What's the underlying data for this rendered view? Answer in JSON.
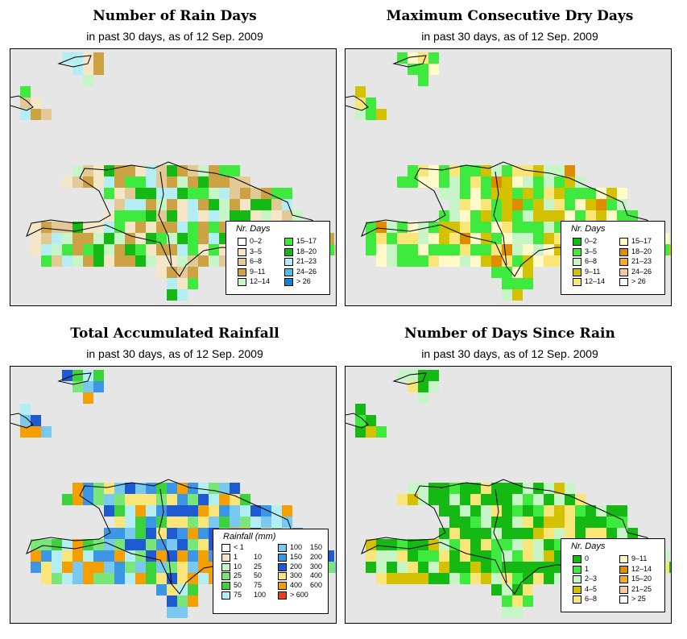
{
  "colors": {
    "ocean": "#e6e6e6",
    "outline": "#000000"
  },
  "panels": [
    {
      "title": "Number of Rain Days",
      "subtitle": "in past 30 days, as of  12 Sep. 2009",
      "legend": {
        "title": "Nr. Days",
        "items": [
          {
            "label": "0–2",
            "color": "#ffffff"
          },
          {
            "label": "3–5",
            "color": "#f5e6c8"
          },
          {
            "label": "6–8",
            "color": "#e2c995"
          },
          {
            "label": "9–11",
            "color": "#cda244"
          },
          {
            "label": "12–14",
            "color": "#c8f5c8"
          },
          {
            "label": "15–17",
            "color": "#3dea3d"
          },
          {
            "label": "18–20",
            "color": "#14b914"
          },
          {
            "label": "21–23",
            "color": "#b3eef5"
          },
          {
            "label": "24–26",
            "color": "#4fbde8"
          },
          {
            "label": "> 26",
            "color": "#1484d2"
          }
        ]
      }
    },
    {
      "title": "Maximum Consecutive Dry Days",
      "subtitle": "in past 30 days, as of  12 Sep. 2009",
      "legend": {
        "title": "Nr. Days",
        "items": [
          {
            "label": "0–2",
            "color": "#14b914"
          },
          {
            "label": "3–5",
            "color": "#3dea3d"
          },
          {
            "label": "6–8",
            "color": "#c8f5c8"
          },
          {
            "label": "9–11",
            "color": "#d4c200"
          },
          {
            "label": "12–14",
            "color": "#fae678"
          },
          {
            "label": "15–17",
            "color": "#fffac8"
          },
          {
            "label": "18–20",
            "color": "#e08c00"
          },
          {
            "label": "21–23",
            "color": "#f5aa2d"
          },
          {
            "label": "24–26",
            "color": "#fac8a0"
          },
          {
            "label": "> 26",
            "color": "#ffffff"
          }
        ]
      }
    },
    {
      "title": "Total Accumulated Rainfall",
      "subtitle": "in past 30 days, as of  12 Sep. 2009",
      "legend": {
        "title": "Rainfall (mm)",
        "items": [
          {
            "lo": "< 1",
            "hi": "",
            "color": "#ffffff"
          },
          {
            "lo": "1",
            "hi": "10",
            "color": "#f5e6c8"
          },
          {
            "lo": "10",
            "hi": "25",
            "color": "#c8f5c8"
          },
          {
            "lo": "25",
            "hi": "50",
            "color": "#78e678"
          },
          {
            "lo": "50",
            "hi": "75",
            "color": "#3cd23c"
          },
          {
            "lo": "75",
            "hi": "100",
            "color": "#b3eef5"
          },
          {
            "lo": "100",
            "hi": "150",
            "color": "#78c8f0"
          },
          {
            "lo": "150",
            "hi": "200",
            "color": "#3c96e6"
          },
          {
            "lo": "200",
            "hi": "300",
            "color": "#1e5ad2"
          },
          {
            "lo": "300",
            "hi": "400",
            "color": "#fae678"
          },
          {
            "lo": "400",
            "hi": "600",
            "color": "#f5a000"
          },
          {
            "lo": "> 600",
            "hi": "",
            "color": "#f03c14"
          }
        ]
      }
    },
    {
      "title": "Number of Days Since Rain",
      "subtitle": "in past 30 days, as of  12 Sep. 2009",
      "legend": {
        "title": "Nr. Days",
        "items": [
          {
            "label": "0",
            "color": "#14b914"
          },
          {
            "label": "1",
            "color": "#3dea3d"
          },
          {
            "label": "2–3",
            "color": "#c8f5c8"
          },
          {
            "label": "4–5",
            "color": "#d4c200"
          },
          {
            "label": "6–8",
            "color": "#fae678"
          },
          {
            "label": "9–11",
            "color": "#fffac8"
          },
          {
            "label": "12–14",
            "color": "#e08c00"
          },
          {
            "label": "15–20",
            "color": "#f5aa2d"
          },
          {
            "label": "21–25",
            "color": "#fac8a0"
          },
          {
            "label": "> 25",
            "color": "#ffffff"
          }
        ]
      }
    }
  ]
}
